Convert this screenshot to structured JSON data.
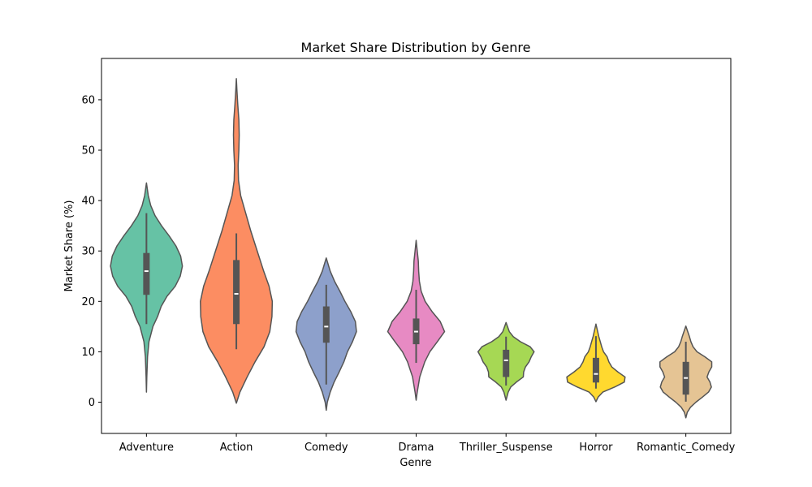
{
  "chart_data": {
    "type": "violin",
    "title": "Market Share Distribution by Genre",
    "xlabel": "Genre",
    "ylabel": "Market Share (%)",
    "ylim": [
      -6.2,
      68.2
    ],
    "yticks": [
      0,
      10,
      20,
      30,
      40,
      50,
      60
    ],
    "grid": false,
    "categories": [
      "Adventure",
      "Action",
      "Comedy",
      "Drama",
      "Thriller_Suspense",
      "Horror",
      "Romantic_Comedy"
    ],
    "colors": [
      "#66c2a5",
      "#fc8d62",
      "#8da0cb",
      "#e78ac3",
      "#a6d854",
      "#ffd92f",
      "#e5c494"
    ],
    "violins": [
      {
        "name": "Adventure",
        "box": {
          "whisker_low": 15.5,
          "q1": 21.3,
          "median": 26.0,
          "q3": 29.6,
          "whisker_high": 37.5
        },
        "density": [
          [
            2.0,
            0
          ],
          [
            5,
            0.01
          ],
          [
            9,
            0.03
          ],
          [
            12,
            0.07
          ],
          [
            15,
            0.18
          ],
          [
            17,
            0.31
          ],
          [
            19,
            0.41
          ],
          [
            21,
            0.57
          ],
          [
            23,
            0.8
          ],
          [
            25,
            0.94
          ],
          [
            27,
            1.0
          ],
          [
            29,
            0.95
          ],
          [
            31,
            0.82
          ],
          [
            33,
            0.63
          ],
          [
            35,
            0.42
          ],
          [
            37,
            0.24
          ],
          [
            39,
            0.12
          ],
          [
            41,
            0.05
          ],
          [
            43.5,
            0
          ]
        ]
      },
      {
        "name": "Action",
        "box": {
          "whisker_low": 10.5,
          "q1": 15.5,
          "median": 21.5,
          "q3": 28.2,
          "whisker_high": 33.5
        },
        "density": [
          [
            -0.2,
            0
          ],
          [
            2,
            0.1
          ],
          [
            5,
            0.3
          ],
          [
            8,
            0.52
          ],
          [
            11,
            0.77
          ],
          [
            14,
            0.93
          ],
          [
            17,
            0.99
          ],
          [
            20,
            1.0
          ],
          [
            23,
            0.91
          ],
          [
            26,
            0.76
          ],
          [
            30,
            0.58
          ],
          [
            34,
            0.4
          ],
          [
            38,
            0.24
          ],
          [
            41,
            0.12
          ],
          [
            44,
            0.06
          ],
          [
            47,
            0.05
          ],
          [
            50,
            0.07
          ],
          [
            53,
            0.08
          ],
          [
            56,
            0.07
          ],
          [
            59,
            0.04
          ],
          [
            62,
            0.015
          ],
          [
            64.2,
            0
          ]
        ]
      },
      {
        "name": "Comedy",
        "box": {
          "whisker_low": 3.5,
          "q1": 11.8,
          "median": 15.0,
          "q3": 19.0,
          "whisker_high": 23.3
        },
        "density": [
          [
            -1.6,
            0
          ],
          [
            0,
            0.03
          ],
          [
            2,
            0.11
          ],
          [
            4,
            0.22
          ],
          [
            6,
            0.36
          ],
          [
            8,
            0.49
          ],
          [
            10,
            0.59
          ],
          [
            12,
            0.73
          ],
          [
            14,
            0.84
          ],
          [
            16,
            0.81
          ],
          [
            18,
            0.68
          ],
          [
            20,
            0.52
          ],
          [
            22,
            0.38
          ],
          [
            24,
            0.23
          ],
          [
            26,
            0.11
          ],
          [
            28.6,
            0
          ]
        ]
      },
      {
        "name": "Drama",
        "box": {
          "whisker_low": 7.8,
          "q1": 11.5,
          "median": 14.0,
          "q3": 16.6,
          "whisker_high": 22.3
        },
        "density": [
          [
            0.4,
            0
          ],
          [
            2,
            0.03
          ],
          [
            5,
            0.1
          ],
          [
            8,
            0.24
          ],
          [
            10,
            0.38
          ],
          [
            12,
            0.59
          ],
          [
            14,
            0.79
          ],
          [
            16,
            0.67
          ],
          [
            18,
            0.44
          ],
          [
            20,
            0.25
          ],
          [
            22,
            0.14
          ],
          [
            24,
            0.09
          ],
          [
            26,
            0.07
          ],
          [
            28,
            0.06
          ],
          [
            30,
            0.03
          ],
          [
            32.1,
            0
          ]
        ]
      },
      {
        "name": "Thriller_Suspense",
        "box": {
          "whisker_low": 3.3,
          "q1": 5.0,
          "median": 8.3,
          "q3": 10.4,
          "whisker_high": 13.0
        },
        "density": [
          [
            0.4,
            0
          ],
          [
            2,
            0.06
          ],
          [
            3,
            0.13
          ],
          [
            4,
            0.29
          ],
          [
            5,
            0.48
          ],
          [
            6,
            0.49
          ],
          [
            7,
            0.54
          ],
          [
            8,
            0.64
          ],
          [
            9,
            0.7
          ],
          [
            10,
            0.78
          ],
          [
            11,
            0.67
          ],
          [
            12,
            0.4
          ],
          [
            13,
            0.2
          ],
          [
            14,
            0.09
          ],
          [
            15.8,
            0
          ]
        ]
      },
      {
        "name": "Horror",
        "box": {
          "whisker_low": 2.7,
          "q1": 3.9,
          "median": 5.6,
          "q3": 8.8,
          "whisker_high": 13.1
        },
        "density": [
          [
            0.1,
            0
          ],
          [
            1,
            0.06
          ],
          [
            2,
            0.19
          ],
          [
            3,
            0.52
          ],
          [
            4,
            0.79
          ],
          [
            5,
            0.81
          ],
          [
            6,
            0.61
          ],
          [
            7,
            0.44
          ],
          [
            8,
            0.36
          ],
          [
            9,
            0.31
          ],
          [
            10,
            0.21
          ],
          [
            11,
            0.16
          ],
          [
            12,
            0.12
          ],
          [
            13,
            0.08
          ],
          [
            15.5,
            0
          ]
        ]
      },
      {
        "name": "Romantic_Comedy",
        "box": {
          "whisker_low": 0.1,
          "q1": 1.5,
          "median": 4.8,
          "q3": 8.0,
          "whisker_high": 12.0
        },
        "density": [
          [
            -3.1,
            0
          ],
          [
            -2,
            0.04
          ],
          [
            -1,
            0.13
          ],
          [
            0,
            0.28
          ],
          [
            1,
            0.46
          ],
          [
            2,
            0.63
          ],
          [
            3,
            0.71
          ],
          [
            4,
            0.67
          ],
          [
            5,
            0.59
          ],
          [
            6,
            0.64
          ],
          [
            7,
            0.72
          ],
          [
            8,
            0.72
          ],
          [
            9,
            0.53
          ],
          [
            10,
            0.31
          ],
          [
            11,
            0.2
          ],
          [
            12,
            0.14
          ],
          [
            13,
            0.1
          ],
          [
            15.1,
            0
          ]
        ]
      }
    ]
  }
}
